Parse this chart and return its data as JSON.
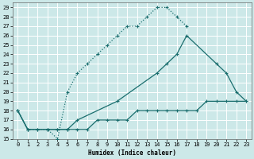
{
  "xlabel": "Humidex (Indice chaleur)",
  "bg_color": "#cce8e8",
  "grid_color": "#ffffff",
  "line_color": "#1a6e6e",
  "xlim": [
    -0.5,
    23.5
  ],
  "ylim": [
    15,
    29.5
  ],
  "xticks": [
    0,
    1,
    2,
    3,
    4,
    5,
    6,
    7,
    8,
    9,
    10,
    11,
    12,
    13,
    14,
    15,
    16,
    17,
    18,
    19,
    20,
    21,
    22,
    23
  ],
  "yticks": [
    15,
    16,
    17,
    18,
    19,
    20,
    21,
    22,
    23,
    24,
    25,
    26,
    27,
    28,
    29
  ],
  "curve1_x": [
    0,
    1,
    2,
    3,
    4,
    5,
    6,
    7,
    8,
    9,
    10,
    11,
    12,
    13,
    14,
    15,
    16,
    17
  ],
  "curve1_y": [
    18,
    16,
    16,
    16,
    15,
    20,
    22,
    23,
    24,
    25,
    26,
    27,
    27,
    28,
    29,
    29,
    28,
    27
  ],
  "curve2_x": [
    0,
    1,
    3,
    4,
    5,
    6,
    10,
    14,
    15,
    16,
    17,
    20,
    21,
    22,
    23
  ],
  "curve2_y": [
    18,
    16,
    16,
    16,
    16,
    17,
    19,
    22,
    23,
    24,
    26,
    23,
    22,
    20,
    19
  ],
  "curve3_x": [
    0,
    1,
    2,
    3,
    4,
    5,
    6,
    7,
    8,
    9,
    10,
    11,
    12,
    13,
    14,
    15,
    16,
    17,
    18,
    19,
    20,
    21,
    22,
    23
  ],
  "curve3_y": [
    18,
    16,
    16,
    16,
    16,
    16,
    16,
    16,
    17,
    17,
    17,
    17,
    18,
    18,
    18,
    18,
    18,
    18,
    18,
    19,
    19,
    19,
    19,
    19
  ]
}
